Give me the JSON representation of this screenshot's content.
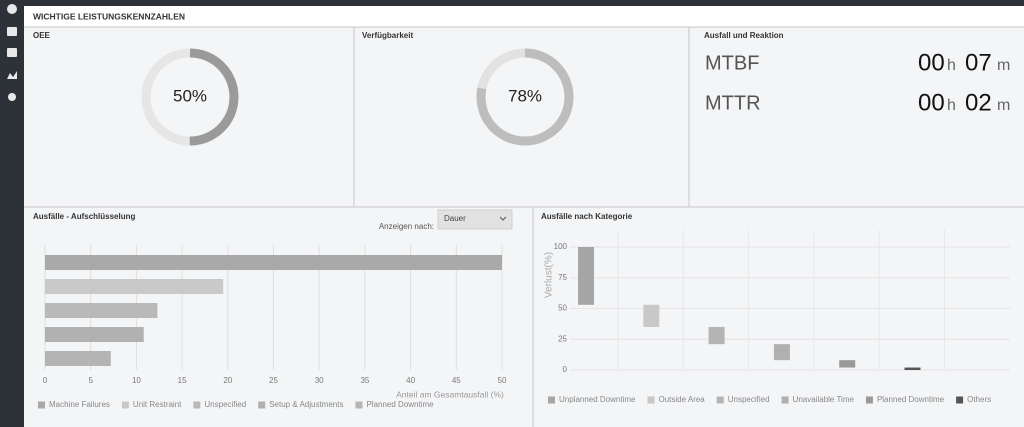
{
  "header": {
    "title": "WICHTIGE LEISTUNGSKENNZAHLEN"
  },
  "oee": {
    "title": "OEE",
    "value": 50,
    "value_label": "50%",
    "color": "#9a9a9a",
    "track_color": "#e6e6e6"
  },
  "availability": {
    "title": "Verfügbarkeit",
    "value": 78,
    "value_label": "78%",
    "color": "#bdbdbd",
    "track_color": "#e2e2e2"
  },
  "failure_response": {
    "title": "Ausfall und Reaktion",
    "metrics": [
      {
        "name": "MTBF",
        "hours": "00",
        "hours_unit": "h",
        "minutes": "07",
        "minutes_unit": "m"
      },
      {
        "name": "MTTR",
        "hours": "00",
        "hours_unit": "h",
        "minutes": "02",
        "minutes_unit": "m"
      }
    ]
  },
  "breakdown": {
    "title": "Ausfälle - Aufschlüsselung",
    "filter_label": "Anzeigen nach:",
    "filter_value": "Dauer",
    "chart": {
      "type": "bar",
      "orientation": "horizontal",
      "categories": [
        "Machine Failures",
        "Unit Restraint",
        "Unspecified",
        "Setup & Adjustments",
        "Planned Downtime"
      ],
      "values": [
        50,
        19.5,
        12.3,
        10.8,
        7.2
      ],
      "colors": [
        "#a9a9a9",
        "#c9c9c9",
        "#b9b9b9",
        "#b1b1b1",
        "#b4b4b4"
      ],
      "xlim": [
        0,
        50
      ],
      "xticks": [
        0,
        5,
        10,
        15,
        20,
        25,
        30,
        35,
        40,
        45,
        50
      ],
      "xlabel": "Anteil am Gesamtausfall (%)",
      "grid": true
    }
  },
  "category_chart": {
    "title": "Ausfälle nach Kategorie",
    "chart": {
      "type": "waterfall",
      "categories": [
        "Unplanned Downtime",
        "Outside Area",
        "Unspecified",
        "Unavailable Time",
        "Planned Downtime",
        "Others"
      ],
      "values": [
        47,
        18,
        14,
        13,
        6,
        2
      ],
      "colors": [
        "#a6a6a6",
        "#c8c8c8",
        "#b4b4b4",
        "#b0b0b0",
        "#9a9a9a",
        "#555555"
      ],
      "ylim": [
        0,
        100
      ],
      "yticks": [
        0,
        25,
        50,
        75,
        100
      ],
      "ylabel": "Verlust(%)",
      "grid": true
    }
  }
}
